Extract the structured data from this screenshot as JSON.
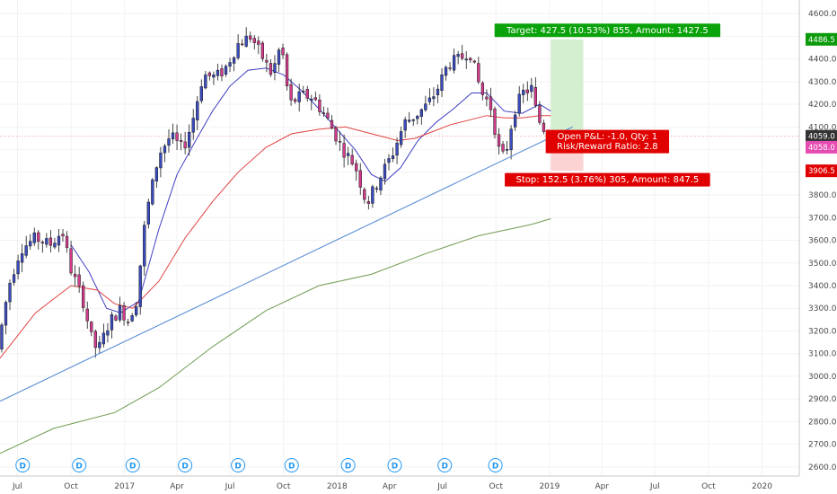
{
  "chart_data": {
    "type": "candlestick",
    "y_axis": {
      "ylim": [
        2560,
        4660
      ],
      "ticks": [
        2600,
        2700,
        2800,
        2900,
        3000,
        3100,
        3200,
        3300,
        3400,
        3500,
        3600,
        3700,
        3800,
        3900,
        4000,
        4100,
        4200,
        4300,
        4400,
        4500,
        4600
      ],
      "tick_labels": [
        "2600.0",
        "2700.0",
        "2800.0",
        "2900.0",
        "3000.0",
        "3100.0",
        "3200.0",
        "3300.0",
        "3400.0",
        "3500.0",
        "3600.0",
        "3700.0",
        "3800.0",
        "3900.0",
        "4000.0",
        "4100.0",
        "4200.0",
        "4300.0",
        "4400.0",
        "4500.0",
        "4600.0"
      ],
      "position": "right"
    },
    "x_axis": {
      "labels": [
        {
          "text": "Jul",
          "date": "2016-07-01"
        },
        {
          "text": "Oct",
          "date": "2016-10-01"
        },
        {
          "text": "2017",
          "date": "2017-01-01"
        },
        {
          "text": "Apr",
          "date": "2017-04-01"
        },
        {
          "text": "Jul",
          "date": "2017-07-01"
        },
        {
          "text": "Oct",
          "date": "2017-10-01"
        },
        {
          "text": "2018",
          "date": "2018-01-01"
        },
        {
          "text": "Apr",
          "date": "2018-04-01"
        },
        {
          "text": "Jul",
          "date": "2018-07-01"
        },
        {
          "text": "Oct",
          "date": "2018-10-01"
        },
        {
          "text": "2019",
          "date": "2019-01-01"
        },
        {
          "text": "Apr",
          "date": "2019-04-01"
        },
        {
          "text": "Jul",
          "date": "2019-07-01"
        },
        {
          "text": "Oct",
          "date": "2019-10-01"
        },
        {
          "text": "2020",
          "date": "2020-01-01"
        }
      ],
      "xlim": [
        "2016-06-01",
        "2020-03-05"
      ]
    },
    "price_anchors": [
      [
        "2016-06-01",
        3120
      ],
      [
        "2016-06-20",
        3400
      ],
      [
        "2016-07-10",
        3560
      ],
      [
        "2016-08-05",
        3610
      ],
      [
        "2016-08-30",
        3580
      ],
      [
        "2016-09-20",
        3640
      ],
      [
        "2016-10-05",
        3470
      ],
      [
        "2016-10-25",
        3340
      ],
      [
        "2016-11-10",
        3160
      ],
      [
        "2016-11-20",
        3110
      ],
      [
        "2016-12-10",
        3240
      ],
      [
        "2016-12-30",
        3300
      ],
      [
        "2017-01-10",
        3240
      ],
      [
        "2017-01-25",
        3330
      ],
      [
        "2017-02-10",
        3700
      ],
      [
        "2017-03-05",
        3980
      ],
      [
        "2017-03-25",
        4060
      ],
      [
        "2017-04-15",
        4000
      ],
      [
        "2017-05-01",
        4120
      ],
      [
        "2017-05-20",
        4330
      ],
      [
        "2017-06-10",
        4320
      ],
      [
        "2017-06-25",
        4350
      ],
      [
        "2017-07-20",
        4470
      ],
      [
        "2017-08-10",
        4500
      ],
      [
        "2017-08-25",
        4430
      ],
      [
        "2017-09-15",
        4330
      ],
      [
        "2017-10-01",
        4470
      ],
      [
        "2017-10-15",
        4200
      ],
      [
        "2017-11-05",
        4240
      ],
      [
        "2017-11-25",
        4230
      ],
      [
        "2017-12-20",
        4130
      ],
      [
        "2018-01-15",
        4000
      ],
      [
        "2018-02-05",
        3930
      ],
      [
        "2018-02-25",
        3760
      ],
      [
        "2018-03-20",
        3880
      ],
      [
        "2018-04-10",
        3980
      ],
      [
        "2018-05-01",
        4120
      ],
      [
        "2018-05-20",
        4150
      ],
      [
        "2018-06-10",
        4200
      ],
      [
        "2018-06-25",
        4260
      ],
      [
        "2018-07-15",
        4380
      ],
      [
        "2018-08-05",
        4400
      ],
      [
        "2018-08-20",
        4440
      ],
      [
        "2018-09-10",
        4250
      ],
      [
        "2018-09-25",
        4200
      ],
      [
        "2018-10-10",
        4000
      ],
      [
        "2018-10-20",
        3960
      ],
      [
        "2018-11-05",
        4170
      ],
      [
        "2018-11-20",
        4250
      ],
      [
        "2018-12-05",
        4270
      ],
      [
        "2018-12-15",
        4140
      ],
      [
        "2019-01-03",
        4059
      ]
    ],
    "series": [
      {
        "name": "",
        "type": "moving-average",
        "color": "#3f3fc4",
        "points": [
          [
            "2016-10-01",
            3580
          ],
          [
            "2016-11-01",
            3460
          ],
          [
            "2016-12-01",
            3300
          ],
          [
            "2016-12-25",
            3280
          ],
          [
            "2017-01-25",
            3330
          ],
          [
            "2017-03-01",
            3650
          ],
          [
            "2017-04-01",
            3890
          ],
          [
            "2017-05-01",
            4030
          ],
          [
            "2017-06-01",
            4170
          ],
          [
            "2017-07-01",
            4280
          ],
          [
            "2017-08-01",
            4350
          ],
          [
            "2017-09-01",
            4360
          ],
          [
            "2017-10-01",
            4330
          ],
          [
            "2017-11-01",
            4260
          ],
          [
            "2017-12-01",
            4180
          ],
          [
            "2018-01-01",
            4090
          ],
          [
            "2018-02-01",
            4000
          ],
          [
            "2018-03-01",
            3890
          ],
          [
            "2018-03-25",
            3860
          ],
          [
            "2018-04-20",
            3920
          ],
          [
            "2018-05-20",
            4040
          ],
          [
            "2018-06-20",
            4120
          ],
          [
            "2018-07-20",
            4180
          ],
          [
            "2018-08-20",
            4250
          ],
          [
            "2018-09-15",
            4250
          ],
          [
            "2018-10-15",
            4170
          ],
          [
            "2018-11-15",
            4160
          ],
          [
            "2018-12-15",
            4200
          ],
          [
            "2019-01-03",
            4170
          ]
        ]
      },
      {
        "name": "",
        "type": "moving-average",
        "color": "#e0413f",
        "points": [
          [
            "2016-06-01",
            3080
          ],
          [
            "2016-08-01",
            3280
          ],
          [
            "2016-10-01",
            3400
          ],
          [
            "2016-11-15",
            3380
          ],
          [
            "2016-12-15",
            3320
          ],
          [
            "2017-01-15",
            3300
          ],
          [
            "2017-03-01",
            3420
          ],
          [
            "2017-04-15",
            3610
          ],
          [
            "2017-06-01",
            3770
          ],
          [
            "2017-07-15",
            3900
          ],
          [
            "2017-09-01",
            4010
          ],
          [
            "2017-10-15",
            4070
          ],
          [
            "2017-12-01",
            4090
          ],
          [
            "2018-01-15",
            4100
          ],
          [
            "2018-03-01",
            4070
          ],
          [
            "2018-04-15",
            4040
          ],
          [
            "2018-05-15",
            4050
          ],
          [
            "2018-06-15",
            4080
          ],
          [
            "2018-07-15",
            4110
          ],
          [
            "2018-08-15",
            4130
          ],
          [
            "2018-09-15",
            4150
          ],
          [
            "2018-10-15",
            4140
          ],
          [
            "2018-11-15",
            4140
          ],
          [
            "2018-12-15",
            4150
          ],
          [
            "2019-01-03",
            4150
          ]
        ]
      },
      {
        "name": "",
        "type": "moving-average",
        "color": "#6e9a4f",
        "points": [
          [
            "2016-06-01",
            2660
          ],
          [
            "2016-09-01",
            2770
          ],
          [
            "2016-12-15",
            2840
          ],
          [
            "2017-03-01",
            2950
          ],
          [
            "2017-06-01",
            3130
          ],
          [
            "2017-09-01",
            3290
          ],
          [
            "2017-12-01",
            3400
          ],
          [
            "2018-03-01",
            3450
          ],
          [
            "2018-06-01",
            3540
          ],
          [
            "2018-09-01",
            3620
          ],
          [
            "2018-12-01",
            3670
          ],
          [
            "2019-01-03",
            3695
          ]
        ]
      },
      {
        "name": "",
        "type": "trendline",
        "color": "#5b8fd6",
        "points": [
          [
            "2016-06-01",
            2890
          ],
          [
            "2019-02-10",
            4100
          ]
        ]
      }
    ],
    "position_tool": {
      "entry": 4059.0,
      "target": 4486.5,
      "stop": 3906.5,
      "start_date": "2019-01-03",
      "end_date": "2019-02-28",
      "target_label": "Target: 427.5 (10.53%) 855, Amount: 1427.5",
      "stop_label": "Stop: 152.5 (3.76%) 305, Amount: 847.5",
      "pnl_label": "Open P&L: -1.0, Qty: 1",
      "rr_label": "Risk/Reward Ratio: 2.8",
      "profit_color": "#d4efd0",
      "loss_color": "#fbd3d3",
      "target_tag_color": "#0aa20a",
      "stop_tag_color": "#e00000"
    },
    "price_tags": [
      {
        "value": 4486.5,
        "label": "4486.5",
        "color": "#0a9a0a"
      },
      {
        "value": 4059.0,
        "label": "4059.0",
        "color": "#333333"
      },
      {
        "value": 4058.0,
        "label": "4058.0",
        "color": "#e54cb1"
      },
      {
        "value": 3906.5,
        "label": "3906.5",
        "color": "#e00000"
      }
    ],
    "last_price_line": {
      "value": 4059.0,
      "color": "#f0a0a0"
    },
    "dividend_markers": [
      "2016-07-10",
      "2016-10-15",
      "2017-01-15",
      "2017-04-15",
      "2017-07-15",
      "2017-10-15",
      "2018-01-20",
      "2018-04-10",
      "2018-07-05",
      "2018-09-30"
    ],
    "dividend_letter": "D",
    "colors": {
      "up": "#3a4bbf",
      "down": "#d23a8c",
      "grid": "#f2f2f2",
      "axis": "#c8c8c8"
    }
  }
}
